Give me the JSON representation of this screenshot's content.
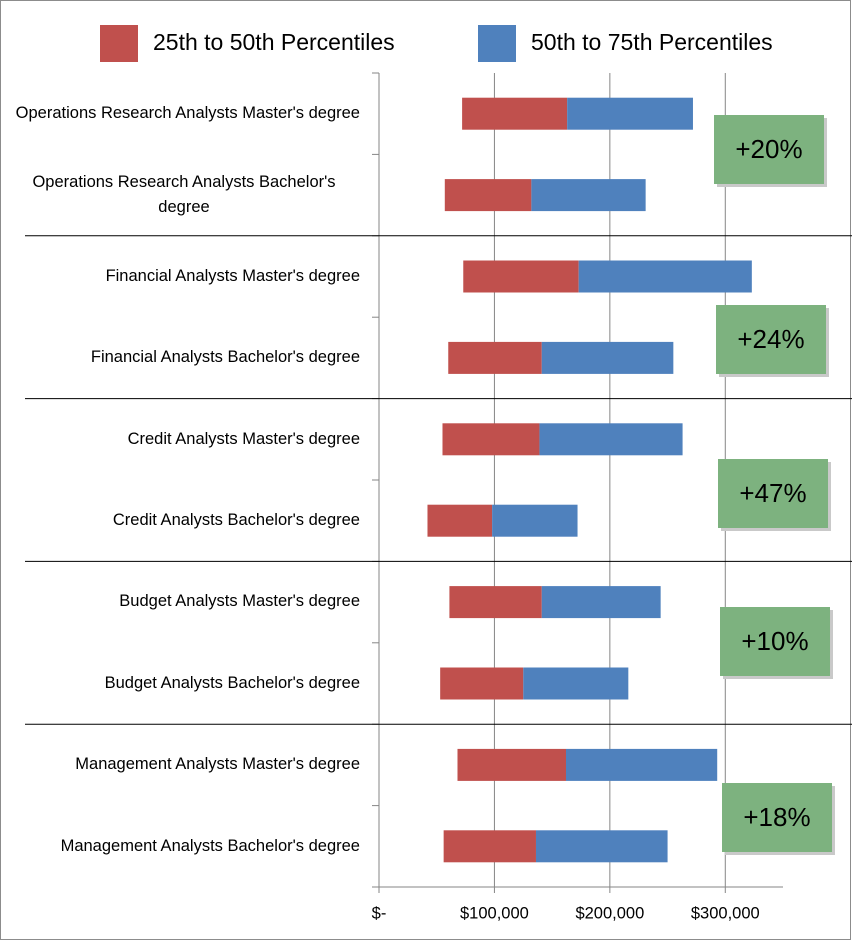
{
  "chart_data": {
    "type": "floating-bar",
    "categories": [
      "Operations Research Analysts Master's degree",
      "Operations Research Analysts Bachelor's degree",
      "Financial Analysts Master's degree",
      "Financial Analysts Bachelor's degree",
      "Credit Analysts Master's degree",
      "Credit Analysts Bachelor's degree",
      "Budget Analysts Master's degree",
      "Budget Analysts Bachelor's degree",
      "Management Analysts Master's degree",
      "Management Analysts Bachelor's degree"
    ],
    "base": [
      72000,
      57000,
      73000,
      60000,
      55000,
      42000,
      61000,
      53000,
      68000,
      56000
    ],
    "series": [
      {
        "name": "25th to 50th Percentiles",
        "color": "#c0504d",
        "values": [
          91000,
          75000,
          100000,
          81000,
          84000,
          56000,
          80000,
          72000,
          94000,
          80000
        ]
      },
      {
        "name": "50th to 75th Percentiles",
        "color": "#4f81bd",
        "values": [
          109000,
          99000,
          150000,
          114000,
          124000,
          74000,
          103000,
          91000,
          131000,
          114000
        ]
      }
    ],
    "xlim": [
      0,
      350000
    ],
    "xticks": [
      {
        "value": 0,
        "label": "$-"
      },
      {
        "value": 100000,
        "label": "$100,000"
      },
      {
        "value": 200000,
        "label": "$200,000"
      },
      {
        "value": 300000,
        "label": "$300,000"
      }
    ],
    "grid": true,
    "annotations": [
      "+20%",
      "+24%",
      "+47%",
      "+10%",
      "+18%"
    ],
    "annotation_color": "#7db27f"
  }
}
